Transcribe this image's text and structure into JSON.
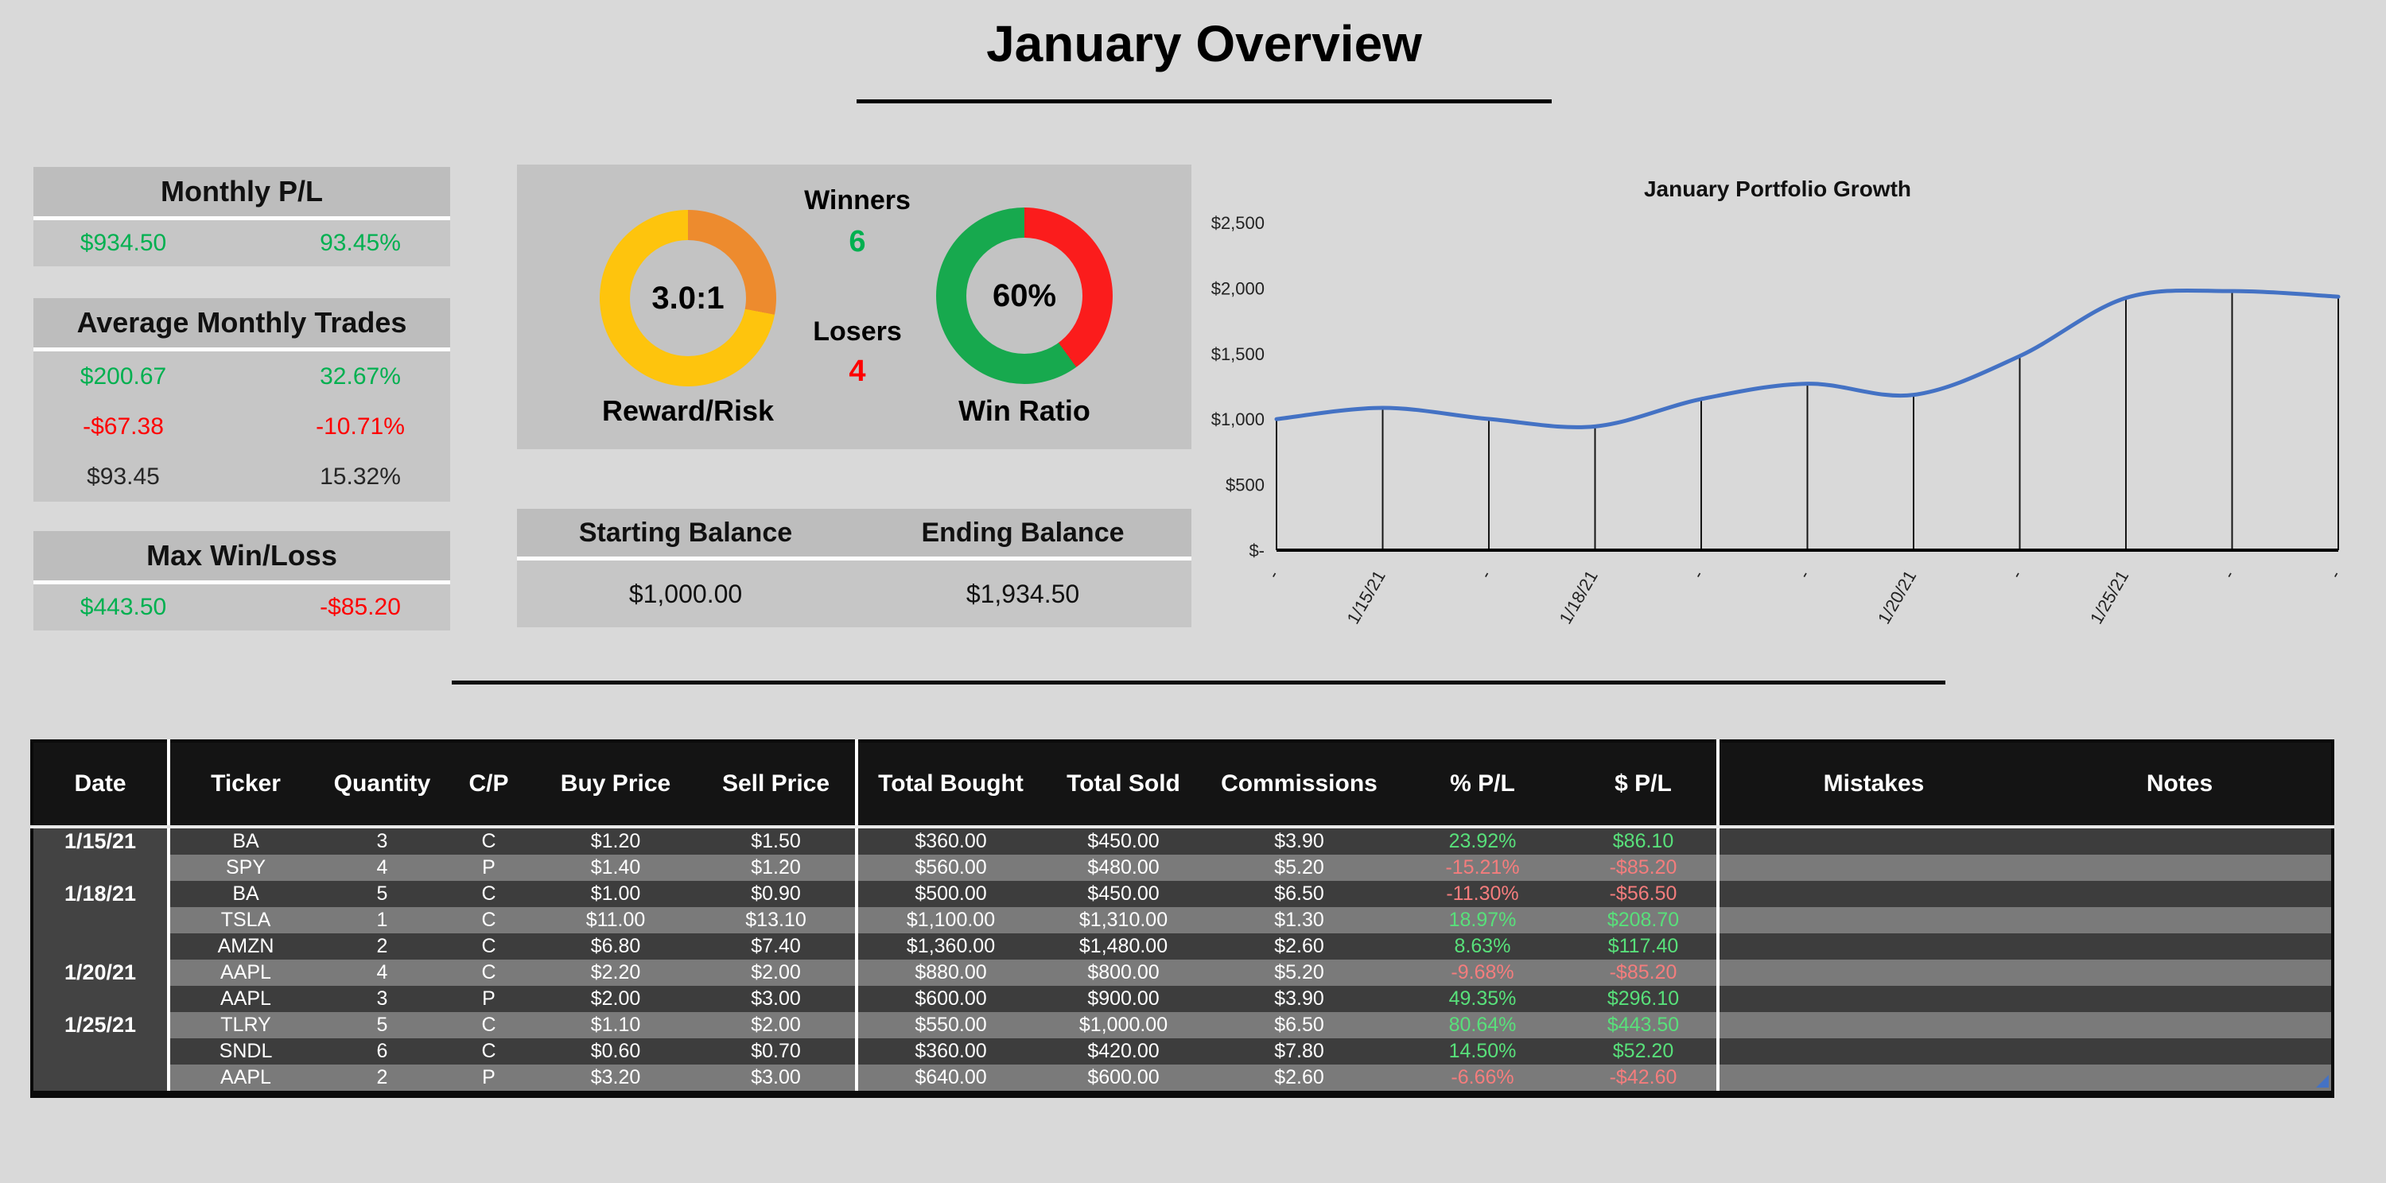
{
  "page": {
    "title": "January Overview"
  },
  "summary": {
    "monthly_pl": {
      "title": "Monthly P/L",
      "dollar": "$934.50",
      "percent": "93.45%"
    },
    "avg_monthly_trades": {
      "title": "Average Monthly Trades",
      "rows": [
        {
          "dollar": "$200.67",
          "percent": "32.67%",
          "tone": "pos"
        },
        {
          "dollar": "-$67.38",
          "percent": "-10.71%",
          "tone": "neg"
        },
        {
          "dollar": "$93.45",
          "percent": "15.32%",
          "tone": "neutral"
        }
      ]
    },
    "max_win_loss": {
      "title": "Max Win/Loss",
      "win": "$443.50",
      "loss": "-$85.20"
    }
  },
  "gauges": {
    "reward_risk": {
      "caption": "Reward/Risk",
      "center_value": "3.0:1",
      "slice_pct": 28,
      "slice_color": "#ed8b2e",
      "main_color": "#fec40d"
    },
    "win_ratio": {
      "caption": "Win Ratio",
      "center_value": "60%",
      "slice_pct": 40,
      "slice_color": "#fb1c1c",
      "main_color": "#17a94e"
    },
    "winners": {
      "label": "Winners",
      "value": "6",
      "value_color": "#00b050"
    },
    "losers": {
      "label": "Losers",
      "value": "4",
      "value_color": "#ff0000"
    }
  },
  "balances": {
    "starting_label": "Starting Balance",
    "starting_value": "$1,000.00",
    "ending_label": "Ending Balance",
    "ending_value": "$1,934.50"
  },
  "chart_data": {
    "type": "line",
    "title": "January Portfolio Growth",
    "x_labels": [
      "-",
      "1/15/21",
      "-",
      "1/18/21",
      "-",
      "-",
      "1/20/21",
      "-",
      "1/25/21",
      "-",
      "-"
    ],
    "values": [
      1000.0,
      1086.1,
      1000.9,
      944.4,
      1153.1,
      1270.5,
      1185.3,
      1481.4,
      1924.9,
      1977.1,
      1934.5
    ],
    "y_ticks": [
      "$2,500",
      "$2,000",
      "$1,500",
      "$1,000",
      "$500",
      "$-"
    ],
    "ylim": [
      0,
      2500
    ],
    "line_color": "#4472c4",
    "drop_lines": true,
    "grid": false,
    "legend_position": "none",
    "ylabel": "",
    "xlabel": ""
  },
  "table": {
    "headers": [
      "Date",
      "Ticker",
      "Quantity",
      "C/P",
      "Buy Price",
      "Sell Price",
      "Total Bought",
      "Total Sold",
      "Commissions",
      "% P/L",
      "$ P/L",
      "Mistakes",
      "Notes"
    ],
    "rows": [
      {
        "date": "1/15/21",
        "ticker": "BA",
        "qty": "3",
        "cp": "C",
        "buy": "$1.20",
        "sell": "$1.50",
        "bought": "$360.00",
        "sold": "$450.00",
        "comm": "$3.90",
        "pct": "23.92%",
        "pl": "$86.10",
        "mistakes": "",
        "notes": ""
      },
      {
        "date": "",
        "ticker": "SPY",
        "qty": "4",
        "cp": "P",
        "buy": "$1.40",
        "sell": "$1.20",
        "bought": "$560.00",
        "sold": "$480.00",
        "comm": "$5.20",
        "pct": "-15.21%",
        "pl": "-$85.20",
        "mistakes": "",
        "notes": ""
      },
      {
        "date": "1/18/21",
        "ticker": "BA",
        "qty": "5",
        "cp": "C",
        "buy": "$1.00",
        "sell": "$0.90",
        "bought": "$500.00",
        "sold": "$450.00",
        "comm": "$6.50",
        "pct": "-11.30%",
        "pl": "-$56.50",
        "mistakes": "",
        "notes": ""
      },
      {
        "date": "",
        "ticker": "TSLA",
        "qty": "1",
        "cp": "C",
        "buy": "$11.00",
        "sell": "$13.10",
        "bought": "$1,100.00",
        "sold": "$1,310.00",
        "comm": "$1.30",
        "pct": "18.97%",
        "pl": "$208.70",
        "mistakes": "",
        "notes": ""
      },
      {
        "date": "",
        "ticker": "AMZN",
        "qty": "2",
        "cp": "C",
        "buy": "$6.80",
        "sell": "$7.40",
        "bought": "$1,360.00",
        "sold": "$1,480.00",
        "comm": "$2.60",
        "pct": "8.63%",
        "pl": "$117.40",
        "mistakes": "",
        "notes": ""
      },
      {
        "date": "1/20/21",
        "ticker": "AAPL",
        "qty": "4",
        "cp": "C",
        "buy": "$2.20",
        "sell": "$2.00",
        "bought": "$880.00",
        "sold": "$800.00",
        "comm": "$5.20",
        "pct": "-9.68%",
        "pl": "-$85.20",
        "mistakes": "",
        "notes": ""
      },
      {
        "date": "",
        "ticker": "AAPL",
        "qty": "3",
        "cp": "P",
        "buy": "$2.00",
        "sell": "$3.00",
        "bought": "$600.00",
        "sold": "$900.00",
        "comm": "$3.90",
        "pct": "49.35%",
        "pl": "$296.10",
        "mistakes": "",
        "notes": ""
      },
      {
        "date": "1/25/21",
        "ticker": "TLRY",
        "qty": "5",
        "cp": "C",
        "buy": "$1.10",
        "sell": "$2.00",
        "bought": "$550.00",
        "sold": "$1,000.00",
        "comm": "$6.50",
        "pct": "80.64%",
        "pl": "$443.50",
        "mistakes": "",
        "notes": ""
      },
      {
        "date": "",
        "ticker": "SNDL",
        "qty": "6",
        "cp": "C",
        "buy": "$0.60",
        "sell": "$0.70",
        "bought": "$360.00",
        "sold": "$420.00",
        "comm": "$7.80",
        "pct": "14.50%",
        "pl": "$52.20",
        "mistakes": "",
        "notes": ""
      },
      {
        "date": "",
        "ticker": "AAPL",
        "qty": "2",
        "cp": "P",
        "buy": "$3.20",
        "sell": "$3.00",
        "bought": "$640.00",
        "sold": "$600.00",
        "comm": "$2.60",
        "pct": "-6.66%",
        "pl": "-$42.60",
        "mistakes": "",
        "notes": ""
      }
    ]
  },
  "colors": {
    "page_bg": "#d9d9d9",
    "panel_bg": "#c3c3c3",
    "panel_head_bg": "#bdbdbd",
    "panel_val_bg": "#c6c6c6",
    "positive": "#00b050",
    "negative": "#ff0000",
    "table_header_bg": "#141414",
    "row_dark": "#3d3d3d",
    "row_light": "#7a7a7a",
    "date_col_bg": "#434343",
    "table_pos": "#58e07a",
    "table_neg": "#f47d7d",
    "chart_line": "#4472c4"
  }
}
